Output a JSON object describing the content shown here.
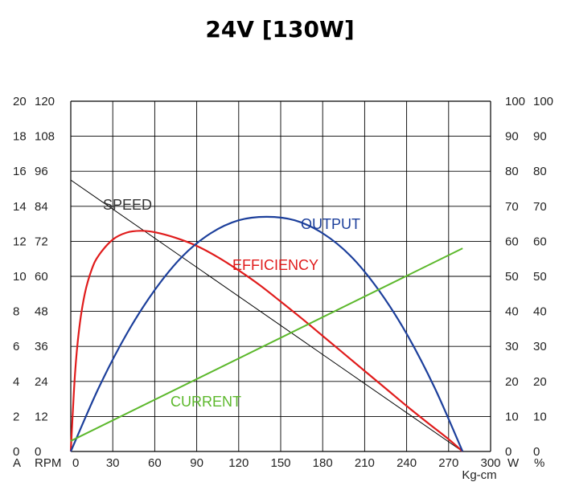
{
  "chart_data": {
    "type": "line",
    "title": "24V [130W]",
    "x": {
      "ticks": [
        0,
        30,
        60,
        90,
        120,
        150,
        180,
        210,
        240,
        270,
        300
      ],
      "range": [
        0,
        300
      ],
      "unit_label": "Kg-cm"
    },
    "axes": {
      "current": {
        "unit": "A",
        "range": [
          0,
          20
        ],
        "ticks": [
          0,
          2,
          4,
          6,
          8,
          10,
          12,
          14,
          16,
          18,
          20
        ]
      },
      "speed": {
        "unit": "RPM",
        "range": [
          0,
          120
        ],
        "ticks": [
          0,
          12,
          24,
          36,
          48,
          60,
          72,
          84,
          96,
          108,
          120
        ]
      },
      "output": {
        "unit": "W",
        "range": [
          0,
          100
        ],
        "ticks": [
          0,
          10,
          20,
          30,
          40,
          50,
          60,
          70,
          80,
          90,
          100
        ]
      },
      "efficiency": {
        "unit": "%",
        "range": [
          0,
          100
        ],
        "ticks": [
          0,
          10,
          20,
          30,
          40,
          50,
          60,
          70,
          80,
          90,
          100
        ]
      }
    },
    "grid": true,
    "series": [
      {
        "name": "SPEED",
        "axis": "speed",
        "color": "#000000",
        "x": [
          0,
          280
        ],
        "y": [
          93,
          0
        ]
      },
      {
        "name": "EFFICIENCY",
        "axis": "efficiency",
        "color": "#e01b1b",
        "x": [
          0,
          3,
          6,
          10,
          15,
          20,
          30,
          40,
          50,
          60,
          75,
          90,
          105,
          120,
          135,
          150,
          165,
          180,
          195,
          210,
          225,
          240,
          255,
          270,
          280
        ],
        "y": [
          0,
          22,
          35,
          45,
          52,
          56,
          60.5,
          62.5,
          63,
          62.6,
          61,
          58.7,
          55.5,
          51.7,
          47.5,
          42.8,
          38,
          33,
          28,
          23,
          18,
          13,
          8.2,
          3.5,
          0
        ]
      },
      {
        "name": "OUTPUT",
        "axis": "output",
        "color": "#1c3f9b",
        "x": [
          0,
          20,
          40,
          60,
          80,
          100,
          120,
          140,
          160,
          180,
          200,
          220,
          240,
          260,
          280
        ],
        "y": [
          0,
          18.2,
          33.6,
          46.1,
          55.8,
          62.3,
          66,
          67,
          66,
          62.3,
          55.8,
          46.1,
          33.6,
          18.2,
          0
        ]
      },
      {
        "name": "CURRENT",
        "axis": "current",
        "color": "#5cb82c",
        "x": [
          0,
          280
        ],
        "y": [
          0.6,
          11.6
        ]
      }
    ],
    "labels": [
      {
        "text": "SPEED",
        "series": "SPEED"
      },
      {
        "text": "EFFICIENCY",
        "series": "EFFICIENCY"
      },
      {
        "text": "OUTPUT",
        "series": "OUTPUT"
      },
      {
        "text": "CURRENT",
        "series": "CURRENT"
      }
    ]
  }
}
